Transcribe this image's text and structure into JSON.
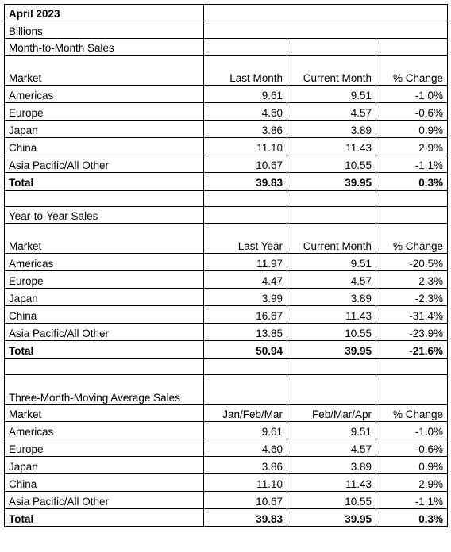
{
  "header": {
    "title": "April 2023",
    "units": "Billions"
  },
  "sections": [
    {
      "title": "Month-to-Month Sales",
      "columns": [
        "Market",
        "Last Month",
        "Current Month",
        "% Change"
      ],
      "rows": [
        [
          "Americas",
          "9.61",
          "9.51",
          "-1.0%"
        ],
        [
          "Europe",
          "4.60",
          "4.57",
          "-0.6%"
        ],
        [
          "Japan",
          "3.86",
          "3.89",
          "0.9%"
        ],
        [
          "China",
          "11.10",
          "11.43",
          "2.9%"
        ],
        [
          "Asia Pacific/All Other",
          "10.67",
          "10.55",
          "-1.1%"
        ]
      ],
      "total": [
        "Total",
        "39.83",
        "39.95",
        "0.3%"
      ]
    },
    {
      "title": "Year-to-Year Sales",
      "columns": [
        "Market",
        "Last Year",
        "Current Month",
        "% Change"
      ],
      "rows": [
        [
          "Americas",
          "11.97",
          "9.51",
          "-20.5%"
        ],
        [
          "Europe",
          "4.47",
          "4.57",
          "2.3%"
        ],
        [
          "Japan",
          "3.99",
          "3.89",
          "-2.3%"
        ],
        [
          "China",
          "16.67",
          "11.43",
          "-31.4%"
        ],
        [
          "Asia Pacific/All Other",
          "13.85",
          "10.55",
          "-23.9%"
        ]
      ],
      "total": [
        "Total",
        "50.94",
        "39.95",
        "-21.6%"
      ]
    },
    {
      "title": "Three-Month-Moving Average Sales",
      "columns": [
        "Market",
        "Jan/Feb/Mar",
        "Feb/Mar/Apr",
        "% Change"
      ],
      "rows": [
        [
          "Americas",
          "9.61",
          "9.51",
          "-1.0%"
        ],
        [
          "Europe",
          "4.60",
          "4.57",
          "-0.6%"
        ],
        [
          "Japan",
          "3.86",
          "3.89",
          "0.9%"
        ],
        [
          "China",
          "11.10",
          "11.43",
          "2.9%"
        ],
        [
          "Asia Pacific/All Other",
          "10.67",
          "10.55",
          "-1.1%"
        ]
      ],
      "total": [
        "Total",
        "39.83",
        "39.95",
        "0.3%"
      ]
    }
  ]
}
